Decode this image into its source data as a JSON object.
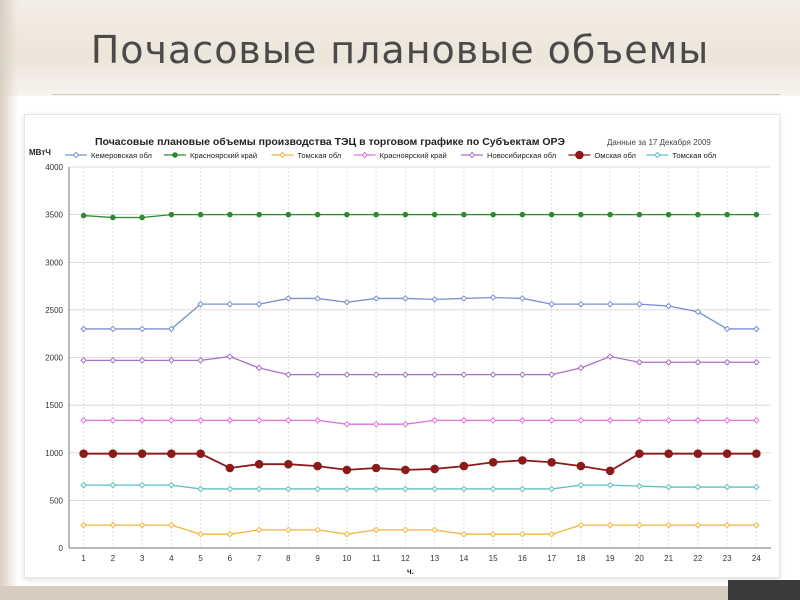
{
  "slide": {
    "title": "Почасовые плановые объемы"
  },
  "chart_data": {
    "type": "line",
    "title": "Почасовые плановые объемы производства ТЭЦ в торговом графике по Субъектам ОРЭ",
    "subtitle": "Данные за  17 Декабря  2009",
    "ylabel": "МВтЧ",
    "xlabel": "ч.",
    "ylim": [
      0,
      4000
    ],
    "yticks": [
      0,
      500,
      1000,
      1500,
      2000,
      2500,
      3000,
      3500,
      4000
    ],
    "grid": true,
    "legend_position": "top",
    "categories": [
      1,
      2,
      3,
      4,
      5,
      6,
      7,
      8,
      9,
      10,
      11,
      12,
      13,
      14,
      15,
      16,
      17,
      18,
      19,
      20,
      21,
      22,
      23,
      24
    ],
    "series": [
      {
        "name": "Кемеровская обл",
        "color": "#7a8fd0",
        "marker": "diamond-open",
        "values": [
          2300,
          2300,
          2300,
          2300,
          2560,
          2560,
          2560,
          2620,
          2620,
          2580,
          2620,
          2620,
          2610,
          2620,
          2630,
          2620,
          2560,
          2560,
          2560,
          2560,
          2540,
          2480,
          2300,
          2300
        ]
      },
      {
        "name": "Красноярский край",
        "color": "#2f8a2f",
        "marker": "dot",
        "values": [
          3490,
          3470,
          3470,
          3500,
          3500,
          3500,
          3500,
          3500,
          3500,
          3500,
          3500,
          3500,
          3500,
          3500,
          3500,
          3500,
          3500,
          3500,
          3500,
          3500,
          3500,
          3500,
          3500,
          3500
        ]
      },
      {
        "name": "Томская обл",
        "color": "#f2b640",
        "marker": "diamond-open",
        "values": [
          240,
          240,
          240,
          240,
          145,
          145,
          190,
          190,
          190,
          145,
          190,
          190,
          190,
          145,
          145,
          145,
          145,
          240,
          240,
          240,
          240,
          240,
          240,
          240
        ]
      },
      {
        "name": "Красноярский край",
        "color": "#e070e0",
        "marker": "diamond-open",
        "values": [
          1340,
          1340,
          1340,
          1340,
          1340,
          1340,
          1340,
          1340,
          1340,
          1300,
          1300,
          1300,
          1340,
          1340,
          1340,
          1340,
          1340,
          1340,
          1340,
          1340,
          1340,
          1340,
          1340,
          1340
        ]
      },
      {
        "name": "Новосибирская обл",
        "color": "#a870c8",
        "marker": "diamond-open",
        "values": [
          1970,
          1970,
          1970,
          1970,
          1970,
          2010,
          1890,
          1820,
          1820,
          1820,
          1820,
          1820,
          1820,
          1820,
          1820,
          1820,
          1820,
          1890,
          2010,
          1950,
          1950,
          1950,
          1950,
          1950
        ]
      },
      {
        "name": "Омская обл",
        "color": "#8b1a1a",
        "marker": "dot-large",
        "values": [
          990,
          990,
          990,
          990,
          990,
          840,
          880,
          880,
          860,
          820,
          840,
          820,
          830,
          860,
          900,
          920,
          900,
          860,
          810,
          990,
          990,
          990,
          990,
          990
        ]
      },
      {
        "name": "Томская обл",
        "color": "#5fc0c0",
        "marker": "diamond-open",
        "values": [
          660,
          660,
          660,
          660,
          620,
          620,
          620,
          620,
          620,
          620,
          620,
          620,
          620,
          620,
          620,
          620,
          620,
          660,
          660,
          650,
          640,
          640,
          640,
          640
        ]
      }
    ]
  }
}
